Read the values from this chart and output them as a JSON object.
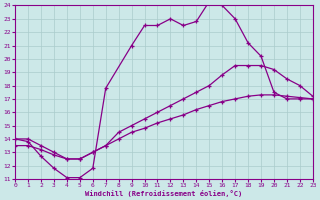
{
  "xlabel": "Windchill (Refroidissement éolien,°C)",
  "bg_color": "#cce8e8",
  "line_color": "#880088",
  "xlim_min": 0,
  "xlim_max": 23,
  "ylim_min": 11,
  "ylim_max": 24,
  "xticks": [
    0,
    1,
    2,
    3,
    4,
    5,
    6,
    7,
    8,
    9,
    10,
    11,
    12,
    13,
    14,
    15,
    16,
    17,
    18,
    19,
    20,
    21,
    22,
    23
  ],
  "yticks": [
    11,
    12,
    13,
    14,
    15,
    16,
    17,
    18,
    19,
    20,
    21,
    22,
    23,
    24
  ],
  "lines": [
    {
      "x": [
        0,
        1,
        2,
        3,
        4,
        5,
        6,
        7,
        9,
        10,
        11,
        12,
        13,
        14,
        15,
        16,
        17,
        18,
        19,
        20,
        21,
        22,
        23
      ],
      "y": [
        14.0,
        13.8,
        12.7,
        11.8,
        11.1,
        11.1,
        11.8,
        17.8,
        21.0,
        22.5,
        22.5,
        23.0,
        22.5,
        22.8,
        24.3,
        24.0,
        23.0,
        21.2,
        20.2,
        17.5,
        17.0,
        17.0,
        17.0
      ]
    },
    {
      "x": [
        0,
        1,
        2,
        3,
        4,
        5,
        6,
        7,
        8,
        9,
        10,
        11,
        12,
        13,
        14,
        15,
        16,
        17,
        18,
        19,
        20,
        21,
        22,
        23
      ],
      "y": [
        14.0,
        14.0,
        13.5,
        13.0,
        12.5,
        12.5,
        13.0,
        13.5,
        14.5,
        15.0,
        15.5,
        16.0,
        16.5,
        17.0,
        17.5,
        18.0,
        18.8,
        19.5,
        19.5,
        19.5,
        19.2,
        18.5,
        18.0,
        17.2
      ]
    },
    {
      "x": [
        0,
        1,
        2,
        3,
        4,
        5,
        6,
        7,
        8,
        9,
        10,
        11,
        12,
        13,
        14,
        15,
        16,
        17,
        18,
        19,
        20,
        21,
        22,
        23
      ],
      "y": [
        13.5,
        13.5,
        13.2,
        12.8,
        12.5,
        12.5,
        13.0,
        13.5,
        14.0,
        14.5,
        14.8,
        15.2,
        15.5,
        15.8,
        16.2,
        16.5,
        16.8,
        17.0,
        17.2,
        17.3,
        17.3,
        17.2,
        17.1,
        17.0
      ]
    }
  ],
  "marker_lines": [
    {
      "x": [
        0,
        1,
        2,
        3,
        4,
        5,
        6,
        7,
        9,
        10,
        11,
        12,
        13,
        14,
        15,
        16,
        17,
        18,
        19,
        20,
        21,
        22,
        23
      ],
      "y": [
        14.0,
        13.8,
        12.7,
        11.8,
        11.1,
        11.1,
        11.8,
        17.8,
        21.0,
        22.5,
        22.5,
        23.0,
        22.5,
        22.8,
        24.3,
        24.0,
        23.0,
        21.2,
        20.2,
        17.5,
        17.0,
        17.0,
        17.0
      ]
    },
    {
      "x": [
        0,
        7,
        15,
        17,
        20,
        23
      ],
      "y": [
        14.0,
        13.5,
        18.0,
        19.5,
        19.2,
        17.2
      ]
    },
    {
      "x": [
        0,
        23
      ],
      "y": [
        13.5,
        17.0
      ]
    }
  ]
}
